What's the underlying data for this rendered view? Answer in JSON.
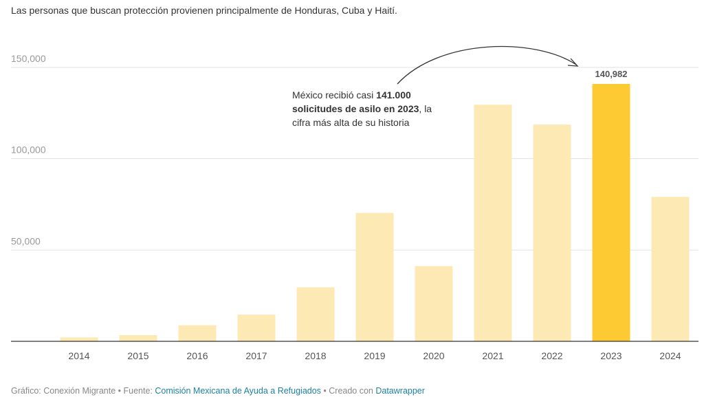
{
  "chart_data": {
    "type": "bar",
    "subtitle": "Las personas que buscan protección provienen principalmente de Honduras, Cuba y Haití.",
    "categories": [
      "2014",
      "2015",
      "2016",
      "2017",
      "2018",
      "2019",
      "2020",
      "2021",
      "2022",
      "2023",
      "2024"
    ],
    "values": [
      2100,
      3400,
      8800,
      14600,
      29600,
      70300,
      41200,
      129600,
      118700,
      140982,
      79100
    ],
    "ylim": [
      0,
      150000
    ],
    "yticks": [
      50000,
      100000,
      150000
    ],
    "ytick_labels": [
      "50,000",
      "100,000",
      "150,000"
    ],
    "grid": true,
    "highlight_index": 9,
    "highlight_label": "140,982",
    "colors": {
      "bar": "#fde9b4",
      "highlight": "#fdca33",
      "grid": "#e2e2e2",
      "axis": "#333333"
    },
    "annotation": {
      "part1": "México recibió casi ",
      "bold1": "141.000 solicitudes de asilo en 2023",
      "part2": ", la cifra más alta de su historia"
    }
  },
  "footer": {
    "prefix": "Gráfico: Conexión Migrante • Fuente: ",
    "source": "Comisión Mexicana de Ayuda a Refugiados",
    "mid": " • Creado con ",
    "tool": "Datawrapper"
  }
}
